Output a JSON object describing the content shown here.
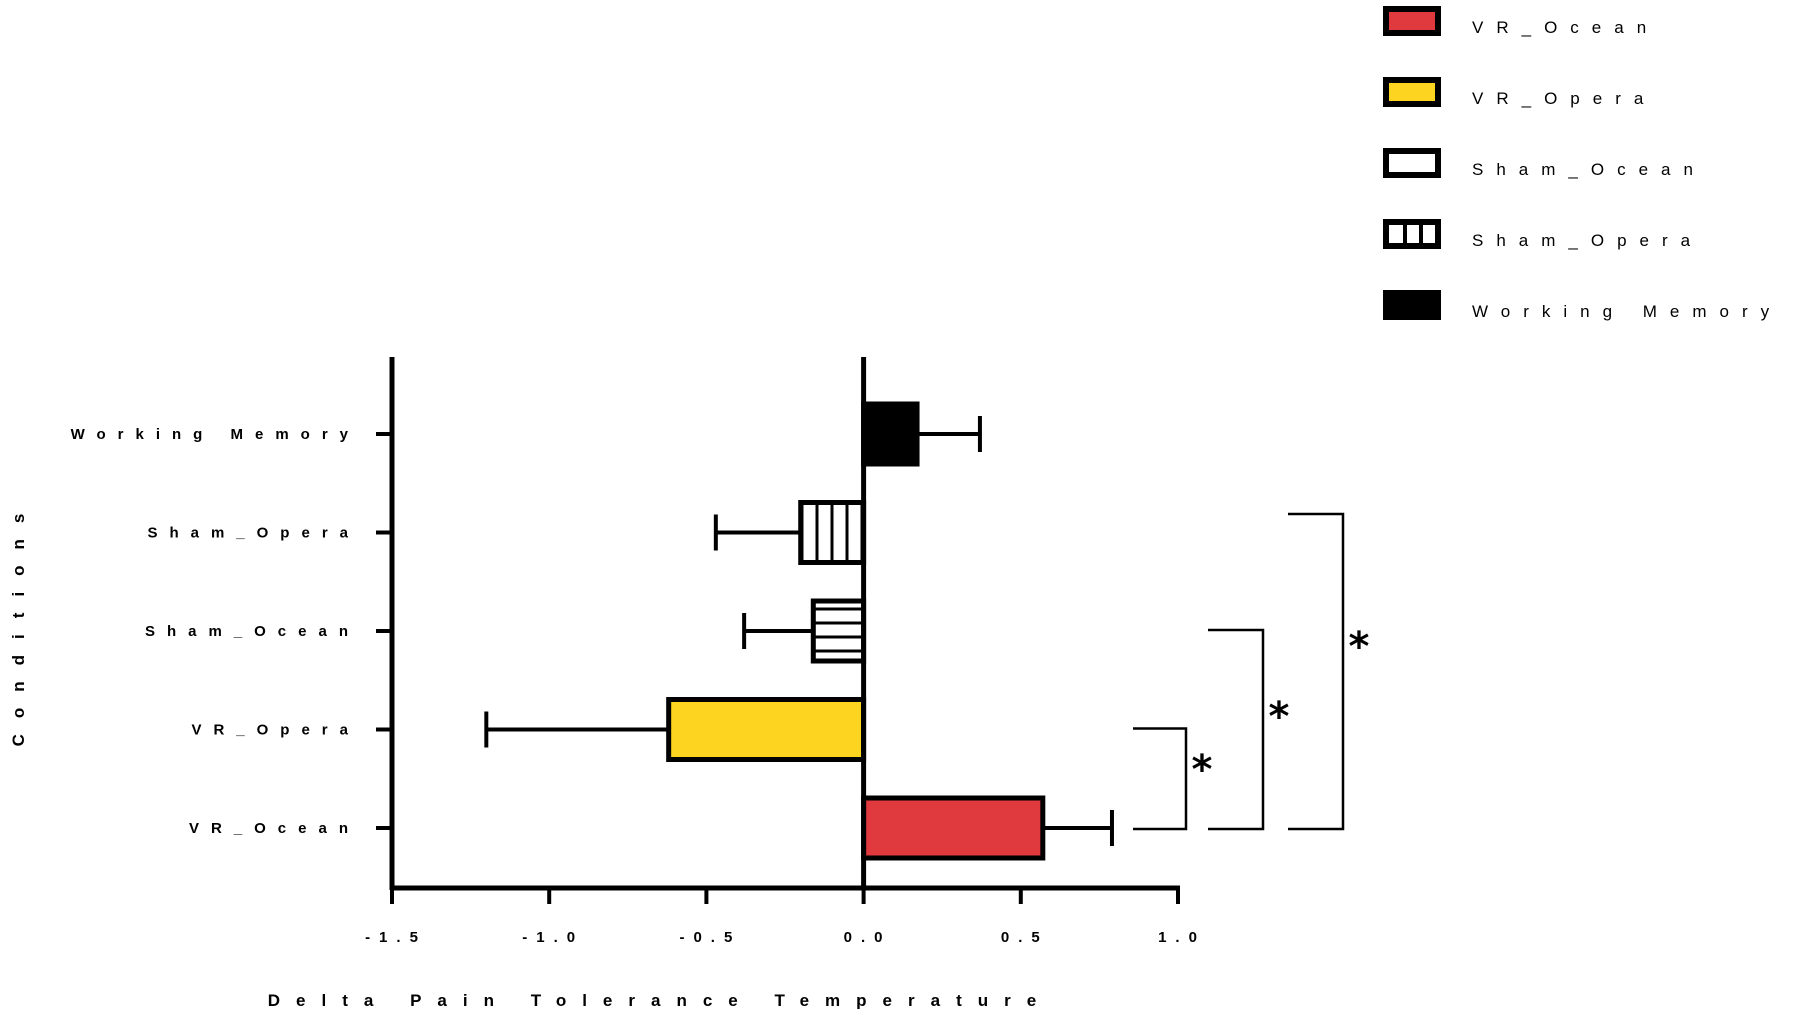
{
  "chart_data": {
    "type": "bar",
    "orientation": "horizontal",
    "title": "",
    "xlabel": "Delta Pain Tolerance Temperature",
    "ylabel": "Conditions",
    "xlim": [
      -1.5,
      1.0
    ],
    "xticks": [
      -1.5,
      -1.0,
      -0.5,
      0.0,
      0.5,
      1.0
    ],
    "xtick_labels": [
      "-1.5",
      "-1.0",
      "-0.5",
      "0.0",
      "0.5",
      "1.0"
    ],
    "categories": [
      "Working Memory",
      "Sham_Opera",
      "Sham_Ocean",
      "VR_Opera",
      "VR_Ocean"
    ],
    "category_labels": [
      "Working Memory",
      "Sham_Opera",
      "Sham_Ocean",
      "VR_Opera",
      "VR_Ocean"
    ],
    "values": [
      0.17,
      -0.2,
      -0.16,
      -0.62,
      0.57
    ],
    "errors": [
      0.2,
      0.27,
      0.22,
      0.58,
      0.22
    ],
    "fills": [
      "solid-black",
      "vertical-lines",
      "horizontal-lines",
      "#fdd520",
      "#e0393e"
    ],
    "colors": {
      "vr_ocean": "#e0393e",
      "vr_opera": "#fdd520",
      "outline": "#000000"
    },
    "legend": {
      "placement": "top-right",
      "entries": [
        "VR_Ocean",
        "VR_Opera",
        "Sham_Ocean",
        "Sham_Opera",
        "Working Memory"
      ],
      "entry_labels": [
        "VR_Ocean",
        "VR_Opera",
        "Sham_Ocean",
        "Sham_Opera",
        "Working Memory"
      ],
      "swatch_fills": [
        "red",
        "yellow",
        "white-horizontal",
        "white-vertical",
        "black"
      ]
    },
    "significance": [
      {
        "between": [
          "VR_Ocean",
          "VR_Opera"
        ],
        "label": "*"
      },
      {
        "between": [
          "VR_Ocean",
          "Sham_Ocean"
        ],
        "label": "*"
      },
      {
        "between": [
          "VR_Ocean",
          "Sham_Opera"
        ],
        "label": "*"
      }
    ],
    "grid": false
  }
}
